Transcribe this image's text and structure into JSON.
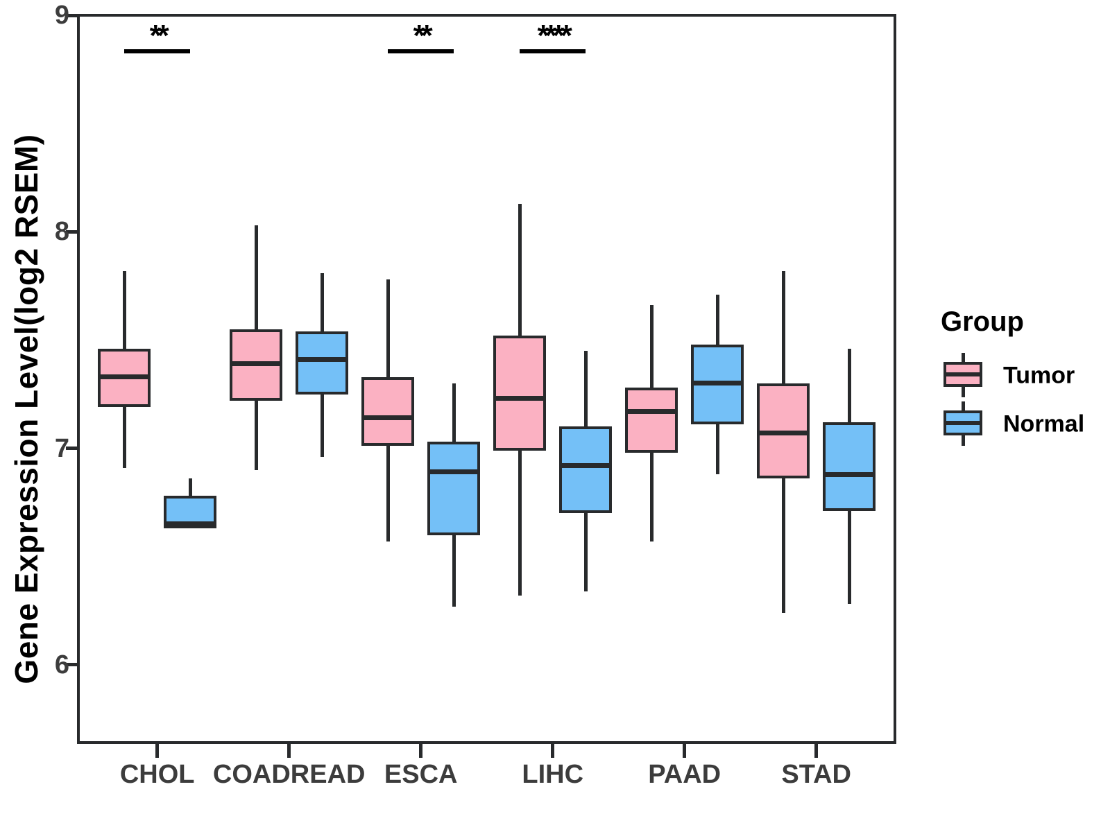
{
  "figure": {
    "background": "#FFFFFF"
  },
  "chart_data": {
    "type": "boxplot",
    "title": "",
    "xlabel": "",
    "ylabel": "Gene Expression Level(log2 RSEM)",
    "categories": [
      "CHOL",
      "COADREAD",
      "ESCA",
      "LIHC",
      "PAAD",
      "STAD"
    ],
    "yticks": [
      6,
      7,
      8,
      9
    ],
    "ylim": [
      5.64,
      9.0
    ],
    "grid": false,
    "legend_position": "right",
    "series": [
      {
        "name": "Tumor",
        "color": "#FBB1C2",
        "boxes": [
          {
            "category": "CHOL",
            "whisker_low": 6.91,
            "q1": 7.19,
            "median": 7.33,
            "q3": 7.46,
            "whisker_high": 7.82
          },
          {
            "category": "COADREAD",
            "whisker_low": 6.9,
            "q1": 7.22,
            "median": 7.39,
            "q3": 7.55,
            "whisker_high": 8.03
          },
          {
            "category": "ESCA",
            "whisker_low": 6.57,
            "q1": 7.01,
            "median": 7.14,
            "q3": 7.33,
            "whisker_high": 7.78
          },
          {
            "category": "LIHC",
            "whisker_low": 6.32,
            "q1": 6.99,
            "median": 7.23,
            "q3": 7.52,
            "whisker_high": 8.13
          },
          {
            "category": "PAAD",
            "whisker_low": 6.57,
            "q1": 6.98,
            "median": 7.17,
            "q3": 7.28,
            "whisker_high": 7.66
          },
          {
            "category": "STAD",
            "whisker_low": 6.24,
            "q1": 6.86,
            "median": 7.07,
            "q3": 7.3,
            "whisker_high": 7.82
          }
        ]
      },
      {
        "name": "Normal",
        "color": "#74C0F7",
        "boxes": [
          {
            "category": "CHOL",
            "whisker_low": 6.63,
            "q1": 6.63,
            "median": 6.65,
            "q3": 6.78,
            "whisker_high": 6.86
          },
          {
            "category": "COADREAD",
            "whisker_low": 6.96,
            "q1": 7.25,
            "median": 7.41,
            "q3": 7.54,
            "whisker_high": 7.81
          },
          {
            "category": "ESCA",
            "whisker_low": 6.27,
            "q1": 6.6,
            "median": 6.89,
            "q3": 7.03,
            "whisker_high": 7.3
          },
          {
            "category": "LIHC",
            "whisker_low": 6.34,
            "q1": 6.7,
            "median": 6.92,
            "q3": 7.1,
            "whisker_high": 7.45
          },
          {
            "category": "PAAD",
            "whisker_low": 6.88,
            "q1": 7.11,
            "median": 7.3,
            "q3": 7.48,
            "whisker_high": 7.71
          },
          {
            "category": "STAD",
            "whisker_low": 6.28,
            "q1": 6.71,
            "median": 6.88,
            "q3": 7.12,
            "whisker_high": 7.46
          }
        ]
      }
    ],
    "significance": [
      {
        "category": "CHOL",
        "label": "**"
      },
      {
        "category": "ESCA",
        "label": "**"
      },
      {
        "category": "LIHC",
        "label": "****"
      }
    ]
  },
  "legend": {
    "title": "Group",
    "items": [
      {
        "label": "Tumor",
        "color": "#FBB1C2"
      },
      {
        "label": "Normal",
        "color": "#74C0F7"
      }
    ]
  },
  "style": {
    "box_border_color": "#282A2C",
    "axis_text_color": "#3C3C3C",
    "significance_color": "#000000"
  }
}
